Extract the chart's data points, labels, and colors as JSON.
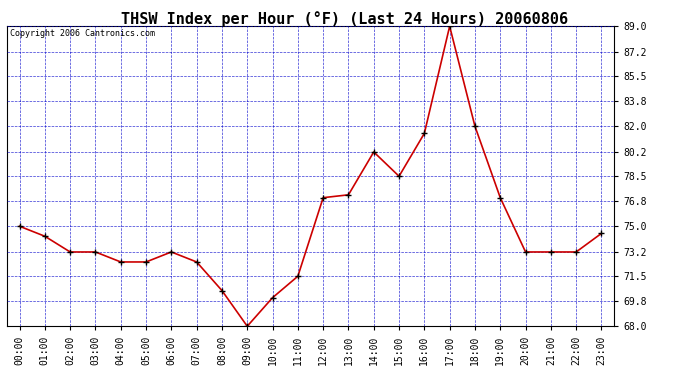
{
  "title": "THSW Index per Hour (°F) (Last 24 Hours) 20060806",
  "copyright": "Copyright 2006 Cantronics.com",
  "hours": [
    0,
    1,
    2,
    3,
    4,
    5,
    6,
    7,
    8,
    9,
    10,
    11,
    12,
    13,
    14,
    15,
    16,
    17,
    18,
    19,
    20,
    21,
    22,
    23
  ],
  "x_labels": [
    "00:00",
    "01:00",
    "02:00",
    "03:00",
    "04:00",
    "05:00",
    "06:00",
    "07:00",
    "08:00",
    "09:00",
    "10:00",
    "11:00",
    "12:00",
    "13:00",
    "14:00",
    "15:00",
    "16:00",
    "17:00",
    "18:00",
    "19:00",
    "20:00",
    "21:00",
    "22:00",
    "23:00"
  ],
  "values": [
    75.0,
    74.3,
    73.2,
    73.2,
    72.5,
    72.5,
    73.2,
    72.5,
    70.5,
    68.0,
    70.0,
    71.5,
    77.0,
    77.2,
    80.2,
    78.5,
    81.5,
    89.0,
    82.0,
    77.0,
    73.2,
    73.2,
    73.2,
    74.5
  ],
  "ylim": [
    68.0,
    89.0
  ],
  "yticks": [
    68.0,
    69.8,
    71.5,
    73.2,
    75.0,
    76.8,
    78.5,
    80.2,
    82.0,
    83.8,
    85.5,
    87.2,
    89.0
  ],
  "line_color": "#cc0000",
  "marker_color": "#000000",
  "grid_color": "#0000cc",
  "background_color": "#ffffff",
  "plot_bg_color": "#ffffff",
  "title_fontsize": 11,
  "copyright_fontsize": 6,
  "tick_fontsize": 7,
  "fig_width": 6.9,
  "fig_height": 3.75,
  "dpi": 100
}
